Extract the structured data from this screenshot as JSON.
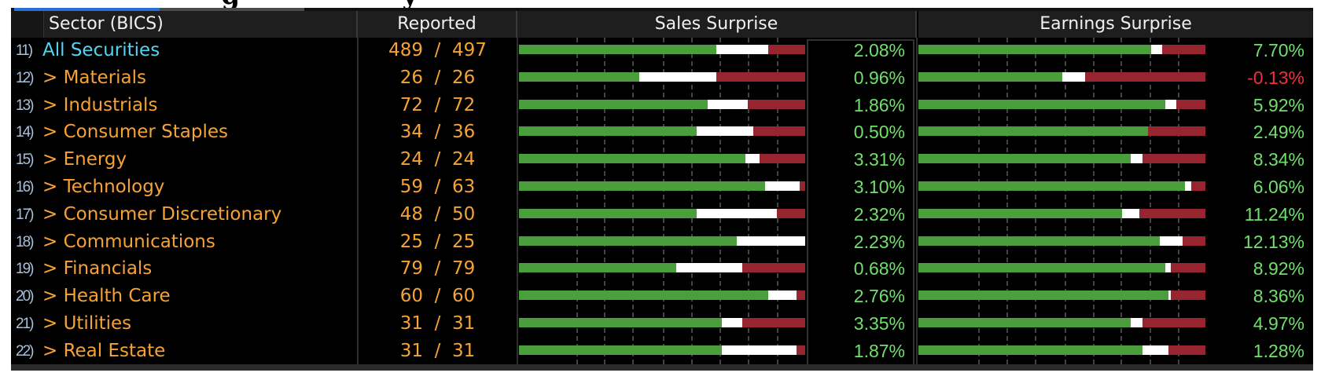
{
  "header": {
    "sector": "Sector (BICS)",
    "reported": "Reported",
    "sales": "Sales Surprise",
    "earnings": "Earnings Surprise"
  },
  "colors": {
    "beat": "#4a9e3b",
    "inline": "#ffffff",
    "miss": "#962530",
    "positive_value": "#6fe06a",
    "negative_value": "#f0303a",
    "sector_text": "#f7a234",
    "all_securities_text": "#52d5f2",
    "tab_active": "#2a6fd6"
  },
  "rows": [
    {
      "num": "11)",
      "name": "All Securities",
      "reported": "489 / 497",
      "sales": "2.08%",
      "earnings": "7.70%",
      "sales_bar": [
        69,
        18,
        13
      ],
      "earn_bar": [
        81,
        4,
        15
      ]
    },
    {
      "num": "12)",
      "name": "> Materials",
      "reported": "26 / 26",
      "sales": "0.96%",
      "earnings": "-0.13%",
      "sales_bar": [
        42,
        27,
        31
      ],
      "earn_bar": [
        50,
        8,
        42
      ]
    },
    {
      "num": "13)",
      "name": "> Industrials",
      "reported": "72 / 72",
      "sales": "1.86%",
      "earnings": "5.92%",
      "sales_bar": [
        66,
        14,
        20
      ],
      "earn_bar": [
        86,
        4,
        10
      ]
    },
    {
      "num": "14)",
      "name": "> Consumer Staples",
      "reported": "34 / 36",
      "sales": "0.50%",
      "earnings": "2.49%",
      "sales_bar": [
        62,
        20,
        18
      ],
      "earn_bar": [
        80,
        0,
        20
      ]
    },
    {
      "num": "15)",
      "name": "> Energy",
      "reported": "24 / 24",
      "sales": "3.31%",
      "earnings": "8.34%",
      "sales_bar": [
        79,
        5,
        16
      ],
      "earn_bar": [
        74,
        4,
        22
      ]
    },
    {
      "num": "16)",
      "name": "> Technology",
      "reported": "59 / 63",
      "sales": "3.10%",
      "earnings": "6.06%",
      "sales_bar": [
        86,
        12,
        2
      ],
      "earn_bar": [
        93,
        2,
        5
      ]
    },
    {
      "num": "17)",
      "name": "> Consumer Discretionary",
      "reported": "48 / 50",
      "sales": "2.32%",
      "earnings": "11.24%",
      "sales_bar": [
        62,
        28,
        10
      ],
      "earn_bar": [
        71,
        6,
        23
      ]
    },
    {
      "num": "18)",
      "name": "> Communications",
      "reported": "25 / 25",
      "sales": "2.23%",
      "earnings": "12.13%",
      "sales_bar": [
        76,
        24,
        0
      ],
      "earn_bar": [
        84,
        8,
        8
      ]
    },
    {
      "num": "19)",
      "name": "> Financials",
      "reported": "79 / 79",
      "sales": "0.68%",
      "earnings": "8.92%",
      "sales_bar": [
        55,
        23,
        22
      ],
      "earn_bar": [
        86,
        2,
        12
      ]
    },
    {
      "num": "20)",
      "name": "> Health Care",
      "reported": "60 / 60",
      "sales": "2.76%",
      "earnings": "8.36%",
      "sales_bar": [
        87,
        10,
        3
      ],
      "earn_bar": [
        87,
        1,
        12
      ]
    },
    {
      "num": "21)",
      "name": "> Utilities",
      "reported": "31 / 31",
      "sales": "3.35%",
      "earnings": "4.97%",
      "sales_bar": [
        71,
        7,
        22
      ],
      "earn_bar": [
        74,
        4,
        22
      ]
    },
    {
      "num": "22)",
      "name": "> Real Estate",
      "reported": "31 / 31",
      "sales": "1.87%",
      "earnings": "1.28%",
      "sales_bar": [
        71,
        26,
        3
      ],
      "earn_bar": [
        78,
        9,
        13
      ]
    }
  ]
}
